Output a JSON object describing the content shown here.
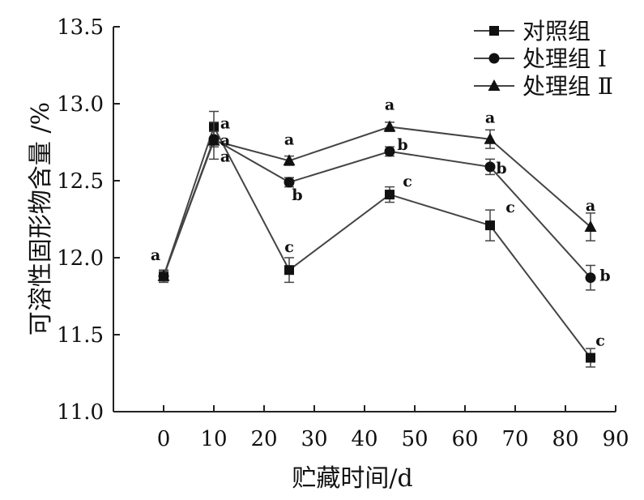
{
  "chart_data": {
    "type": "line",
    "title": "",
    "xlabel": "贮藏时间/d",
    "ylabel": "可溶性固形物含量 /%",
    "xlim": [
      -10,
      90
    ],
    "ylim": [
      11.0,
      13.5
    ],
    "xticks": [
      0,
      10,
      20,
      30,
      40,
      50,
      60,
      70,
      80,
      90
    ],
    "xtick_labels": [
      "0",
      "10",
      "20",
      "30",
      "40",
      "50",
      "60",
      "70",
      "80",
      "90"
    ],
    "yticks": [
      11.0,
      11.5,
      12.0,
      12.5,
      13.0,
      13.5
    ],
    "ytick_labels": [
      "11.0",
      "11.5",
      "12.0",
      "12.5",
      "13.0",
      "13.5"
    ],
    "grid": false,
    "legend_position": "top-right",
    "series": [
      {
        "name": "对照组",
        "marker": "square",
        "x": [
          0,
          10,
          25,
          45,
          65,
          85
        ],
        "y": [
          11.88,
          12.85,
          11.92,
          12.41,
          12.21,
          11.35
        ],
        "err": [
          0.04,
          0.1,
          0.08,
          0.05,
          0.1,
          0.06
        ],
        "labels": [
          "a",
          "a",
          "c",
          "c",
          "c",
          "c"
        ]
      },
      {
        "name": "处理组 Ⅰ",
        "marker": "circle",
        "x": [
          0,
          10,
          25,
          45,
          65,
          85
        ],
        "y": [
          11.88,
          12.77,
          12.49,
          12.69,
          12.59,
          11.87
        ],
        "err": [
          0.03,
          0.05,
          0.03,
          0.03,
          0.05,
          0.08
        ],
        "labels": [
          "",
          "a",
          "b",
          "b",
          "b",
          "b"
        ]
      },
      {
        "name": "处理组 Ⅱ",
        "marker": "triangle",
        "x": [
          0,
          10,
          25,
          45,
          65,
          85
        ],
        "y": [
          11.88,
          12.76,
          12.63,
          12.85,
          12.77,
          12.2
        ],
        "err": [
          0.03,
          0.12,
          0.03,
          0.03,
          0.06,
          0.09
        ],
        "labels": [
          "",
          "a",
          "a",
          "a",
          "a",
          "a"
        ]
      }
    ]
  }
}
